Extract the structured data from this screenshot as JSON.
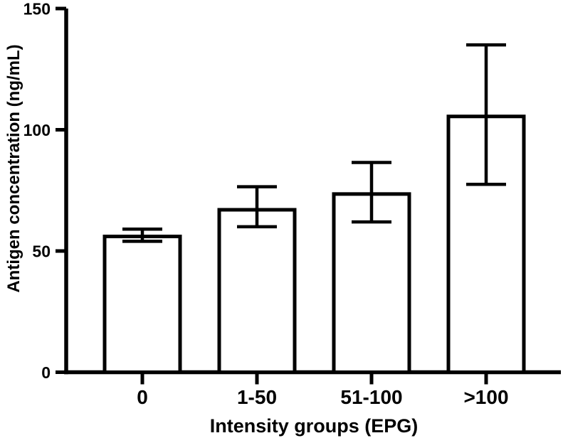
{
  "figure": {
    "background": "#ffffff",
    "ink": "#000000"
  },
  "chart_data": {
    "type": "bar",
    "title": "",
    "xlabel": "Intensity groups (EPG)",
    "ylabel": "Antigen concentration (ng/mL)",
    "categories": [
      "0",
      "1-50",
      "51-100",
      ">100"
    ],
    "series": [
      {
        "name": "Antigen concentration (ng/mL)",
        "values": [
          56,
          67,
          73.5,
          105.5
        ],
        "error_upper": [
          59,
          76.5,
          86.5,
          135
        ],
        "error_lower": [
          54,
          60,
          62,
          77.5
        ]
      }
    ],
    "ylim": [
      0,
      150
    ],
    "yticks": [
      0,
      50,
      100,
      150
    ],
    "grid": false,
    "legend": "none",
    "bar_fill": "#ffffff",
    "bar_stroke": "#000000",
    "error_bar_style": "caps-both-ends"
  }
}
